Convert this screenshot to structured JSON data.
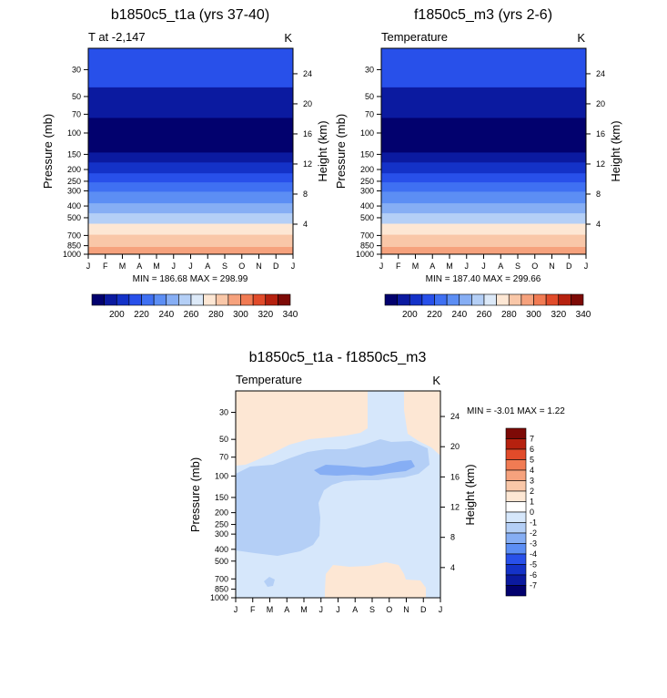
{
  "chart_data": [
    {
      "type": "heatmap",
      "title": "b1850c5_t1a (yrs 37-40)",
      "subtitle_left": "T at -2,147",
      "subtitle_right": "K",
      "xlabel": "",
      "ylabel": "Pressure (mb)",
      "ylabel_right": "Height (km)",
      "x_ticks": [
        "J",
        "F",
        "M",
        "A",
        "M",
        "J",
        "J",
        "A",
        "S",
        "O",
        "N",
        "D",
        "J"
      ],
      "y_ticks": [
        "30",
        "50",
        "70",
        "100",
        "150",
        "200",
        "250",
        "300",
        "400",
        "500",
        "700",
        "850",
        "1000"
      ],
      "y_ticks_right": [
        "24",
        "20",
        "16",
        "12",
        "8",
        "4"
      ],
      "min_max_label": "MIN = 186.68  MAX = 298.99",
      "colorbar_labels": [
        "200",
        "220",
        "240",
        "260",
        "280",
        "300",
        "320",
        "340"
      ],
      "colorbar_colors": [
        "#02016e",
        "#0b1aa0",
        "#1432c8",
        "#2850ea",
        "#3f70f2",
        "#5c8ef4",
        "#86aef4",
        "#b4cff6",
        "#dce9f8",
        "#fde7d4",
        "#f9c7a8",
        "#f6a27d",
        "#f17b53",
        "#e14b2a",
        "#b6210f",
        "#7d0a06"
      ],
      "bands": [
        {
          "p_top": 20,
          "p_bot": 42,
          "color": "#2850ea"
        },
        {
          "p_top": 42,
          "p_bot": 75,
          "color": "#0b1aa0",
          "wave": true
        },
        {
          "p_top": 75,
          "p_bot": 145,
          "color": "#02016e"
        },
        {
          "p_top": 145,
          "p_bot": 175,
          "color": "#0b1aa0"
        },
        {
          "p_top": 175,
          "p_bot": 215,
          "color": "#1432c8"
        },
        {
          "p_top": 215,
          "p_bot": 255,
          "color": "#2850ea"
        },
        {
          "p_top": 255,
          "p_bot": 305,
          "color": "#3f70f2"
        },
        {
          "p_top": 305,
          "p_bot": 380,
          "color": "#5c8ef4"
        },
        {
          "p_top": 380,
          "p_bot": 460,
          "color": "#86aef4"
        },
        {
          "p_top": 460,
          "p_bot": 560,
          "color": "#b4cff6"
        },
        {
          "p_top": 560,
          "p_bot": 690,
          "color": "#fde7d4"
        },
        {
          "p_top": 690,
          "p_bot": 870,
          "color": "#f9c7a8"
        },
        {
          "p_top": 870,
          "p_bot": 1000,
          "color": "#f6a27d"
        }
      ]
    },
    {
      "type": "heatmap",
      "title": "f1850c5_m3 (yrs 2-6)",
      "subtitle_left": "Temperature",
      "subtitle_right": "K",
      "xlabel": "",
      "ylabel": "Pressure (mb)",
      "ylabel_right": "Height (km)",
      "x_ticks": [
        "J",
        "F",
        "M",
        "A",
        "M",
        "J",
        "J",
        "A",
        "S",
        "O",
        "N",
        "D",
        "J"
      ],
      "y_ticks": [
        "30",
        "50",
        "70",
        "100",
        "150",
        "200",
        "250",
        "300",
        "400",
        "500",
        "700",
        "850",
        "1000"
      ],
      "y_ticks_right": [
        "24",
        "20",
        "16",
        "12",
        "8",
        "4"
      ],
      "min_max_label": "MIN = 187.40  MAX = 299.66",
      "colorbar_labels": [
        "200",
        "220",
        "240",
        "260",
        "280",
        "300",
        "320",
        "340"
      ],
      "colorbar_colors": [
        "#02016e",
        "#0b1aa0",
        "#1432c8",
        "#2850ea",
        "#3f70f2",
        "#5c8ef4",
        "#86aef4",
        "#b4cff6",
        "#dce9f8",
        "#fde7d4",
        "#f9c7a8",
        "#f6a27d",
        "#f17b53",
        "#e14b2a",
        "#b6210f",
        "#7d0a06"
      ],
      "bands": [
        {
          "p_top": 20,
          "p_bot": 42,
          "color": "#2850ea"
        },
        {
          "p_top": 42,
          "p_bot": 75,
          "color": "#0b1aa0",
          "wave": true
        },
        {
          "p_top": 75,
          "p_bot": 145,
          "color": "#02016e"
        },
        {
          "p_top": 145,
          "p_bot": 175,
          "color": "#0b1aa0"
        },
        {
          "p_top": 175,
          "p_bot": 215,
          "color": "#1432c8"
        },
        {
          "p_top": 215,
          "p_bot": 255,
          "color": "#2850ea"
        },
        {
          "p_top": 255,
          "p_bot": 305,
          "color": "#3f70f2"
        },
        {
          "p_top": 305,
          "p_bot": 380,
          "color": "#5c8ef4"
        },
        {
          "p_top": 380,
          "p_bot": 460,
          "color": "#86aef4"
        },
        {
          "p_top": 460,
          "p_bot": 560,
          "color": "#b4cff6"
        },
        {
          "p_top": 560,
          "p_bot": 690,
          "color": "#fde7d4"
        },
        {
          "p_top": 690,
          "p_bot": 870,
          "color": "#f9c7a8"
        },
        {
          "p_top": 870,
          "p_bot": 1000,
          "color": "#f6a27d"
        }
      ]
    },
    {
      "type": "heatmap",
      "title": "b1850c5_t1a - f1850c5_m3",
      "subtitle_left": "Temperature",
      "subtitle_right": "K",
      "xlabel": "",
      "ylabel": "Pressure (mb)",
      "ylabel_right": "Height (km)",
      "x_ticks": [
        "J",
        "F",
        "M",
        "A",
        "M",
        "J",
        "J",
        "A",
        "S",
        "O",
        "N",
        "D",
        "J"
      ],
      "y_ticks": [
        "30",
        "50",
        "70",
        "100",
        "150",
        "200",
        "250",
        "300",
        "400",
        "500",
        "700",
        "850",
        "1000"
      ],
      "y_ticks_right": [
        "24",
        "20",
        "16",
        "12",
        "8",
        "4"
      ],
      "min_max_label": "MIN =  -3.01  MAX =   1.22",
      "colorbar_labels": [
        "7",
        "6",
        "5",
        "4",
        "3",
        "2",
        "1",
        "0",
        "-1",
        "-2",
        "-3",
        "-4",
        "-5",
        "-6",
        "-7"
      ],
      "colorbar_colors": [
        "#7d0a06",
        "#b6210f",
        "#e14b2a",
        "#f17b53",
        "#f6a27d",
        "#f9c7a8",
        "#fde7d4",
        "#ffffff",
        "#d6e7fb",
        "#b4cff6",
        "#86aef4",
        "#5c8ef4",
        "#2850ea",
        "#1432c8",
        "#0b1aa0",
        "#02016e"
      ],
      "region_colors": {
        "positive_0_1": "#fde7d4",
        "negative_0_1": "#d6e7fb",
        "negative_1_2": "#b4cff6",
        "negative_2_3": "#86aef4"
      }
    }
  ]
}
